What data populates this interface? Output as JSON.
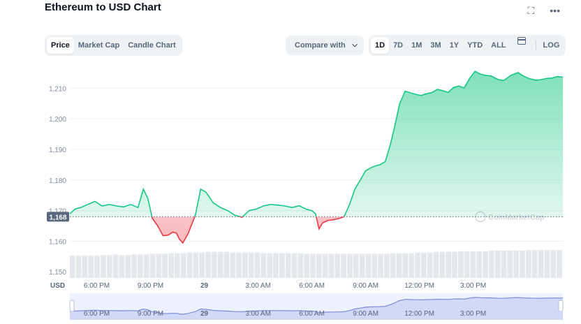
{
  "header": {
    "title": "Ethereum to USD Chart",
    "fullscreen_icon": "expand-icon",
    "more_icon": "more-dots-icon"
  },
  "tabs": [
    {
      "label": "Price",
      "active": true
    },
    {
      "label": "Market Cap",
      "active": false
    },
    {
      "label": "Candle Chart",
      "active": false
    }
  ],
  "compare": {
    "label": "Compare with",
    "icon": "chevron-down-icon"
  },
  "ranges": [
    {
      "label": "1D",
      "active": true
    },
    {
      "label": "7D",
      "active": false
    },
    {
      "label": "1M",
      "active": false
    },
    {
      "label": "3M",
      "active": false
    },
    {
      "label": "1Y",
      "active": false
    },
    {
      "label": "YTD",
      "active": false
    },
    {
      "label": "ALL",
      "active": false
    }
  ],
  "calendar_icon": "calendar-icon",
  "log_label": "LOG",
  "watermark": "CoinMarketCap",
  "chart_data": {
    "type": "area",
    "title": "Ethereum to USD Chart",
    "ylabel": "",
    "xlabel": "",
    "currency_label": "USD",
    "ylim": [
      1148,
      1216
    ],
    "xlim": [
      0,
      27.5
    ],
    "y_ticks": [
      1150,
      1160,
      1170,
      1180,
      1190,
      1200,
      1210
    ],
    "y_tick_labels": [
      "1,150",
      "1,160",
      "1,170",
      "1,180",
      "1,190",
      "1,200",
      "1,210"
    ],
    "x_ticks": [
      {
        "h": 1.5,
        "label": "6:00 PM"
      },
      {
        "h": 4.5,
        "label": "9:00 PM"
      },
      {
        "h": 7.5,
        "label": "29"
      },
      {
        "h": 10.5,
        "label": "3:00 AM"
      },
      {
        "h": 13.5,
        "label": "6:00 AM"
      },
      {
        "h": 16.5,
        "label": "9:00 AM"
      },
      {
        "h": 19.5,
        "label": "12:00 PM"
      },
      {
        "h": 22.5,
        "label": "3:00 PM"
      }
    ],
    "reference_price": 1168,
    "reference_label": "1,168",
    "grid": true,
    "up_color": "#16c784",
    "down_color": "#ea3943",
    "series": [
      {
        "x": [
          0,
          0.3,
          0.6,
          1.0,
          1.4,
          1.8,
          2.2,
          2.6,
          3.0,
          3.4,
          3.8,
          4.1,
          4.35,
          4.6,
          4.9,
          5.2,
          5.5,
          5.75,
          5.95,
          6.1,
          6.3,
          6.6,
          7.0,
          7.3,
          7.6,
          8.0,
          8.4,
          8.8,
          9.2,
          9.6,
          10.0,
          10.4,
          10.8,
          11.2,
          11.6,
          12.0,
          12.4,
          12.8,
          13.2,
          13.5,
          13.7,
          13.9,
          14.1,
          14.4,
          14.7,
          15.0,
          15.3,
          15.6,
          15.9,
          16.2,
          16.5,
          16.8,
          17.0,
          17.3,
          17.6,
          17.9,
          18.1,
          18.4,
          18.7,
          19.0,
          19.3,
          19.6,
          19.9,
          20.2,
          20.5,
          20.8,
          21.1,
          21.4,
          21.7,
          22.0,
          22.3,
          22.6,
          22.9,
          23.2,
          23.5,
          23.9,
          24.2,
          24.6,
          25.0,
          25.3,
          25.6,
          26.0,
          26.3,
          26.6,
          26.9,
          27.2,
          27.5
        ],
        "values": [
          1169,
          1170.5,
          1171,
          1172,
          1173,
          1171.5,
          1172,
          1171.5,
          1171.2,
          1172,
          1171,
          1177,
          1174,
          1167.5,
          1165,
          1161.8,
          1162,
          1163,
          1162.6,
          1160.8,
          1159.4,
          1162.5,
          1168.5,
          1177,
          1176,
          1172.5,
          1171,
          1170,
          1168.5,
          1167.8,
          1170,
          1170.5,
          1171.5,
          1172,
          1171.8,
          1171.5,
          1171,
          1171.6,
          1170.4,
          1170,
          1169,
          1164,
          1166,
          1166.8,
          1167,
          1167.4,
          1168,
          1172,
          1177,
          1180,
          1183,
          1184,
          1184.5,
          1185,
          1186,
          1192,
          1197,
          1205,
          1209,
          1208.5,
          1208,
          1207.6,
          1208.2,
          1208.6,
          1209.6,
          1209.2,
          1208.6,
          1210.2,
          1210.7,
          1210.1,
          1213.2,
          1215.5,
          1214.6,
          1214.2,
          1214,
          1212.8,
          1212.5,
          1214.2,
          1215.1,
          1214,
          1213.2,
          1212.6,
          1212.8,
          1213.2,
          1213.3,
          1213.8,
          1213.6
        ]
      }
    ],
    "volume": [
      35,
      35,
      35,
      35,
      35,
      36,
      36,
      37,
      36,
      36,
      37,
      37,
      37,
      38,
      38,
      38,
      39,
      39,
      39,
      40,
      40,
      40,
      41,
      41,
      41,
      41,
      40,
      40,
      40,
      40,
      40,
      39,
      39,
      39,
      39,
      39,
      39,
      39,
      38,
      38,
      38,
      38,
      38,
      38,
      38,
      38,
      38,
      38,
      38,
      38,
      38,
      38,
      39,
      39,
      39,
      39,
      40,
      40,
      40,
      41,
      41,
      41,
      41,
      42,
      42,
      42,
      42,
      42,
      43,
      43,
      43,
      43,
      43,
      43,
      44,
      44,
      44,
      44,
      44,
      44
    ],
    "navigator_x_labels": [
      "6:00 PM",
      "9:00 PM",
      "29",
      "3:00 AM",
      "6:00 AM",
      "9:00 AM",
      "12:00 PM",
      "3:00 PM"
    ]
  }
}
